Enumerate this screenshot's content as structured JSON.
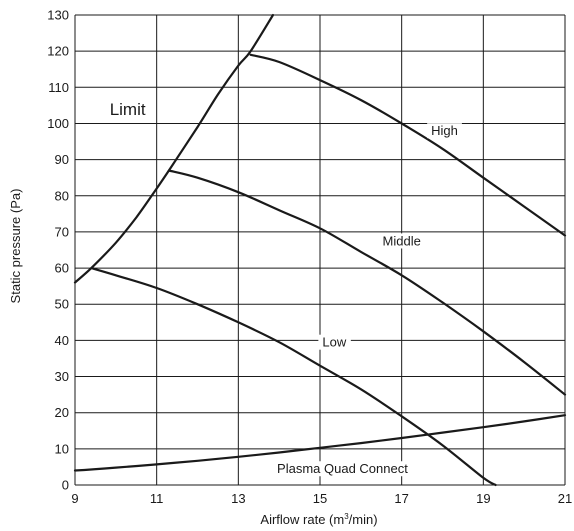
{
  "chart_data": {
    "type": "line",
    "xlabel_main": "Airflow rate (m",
    "xlabel_sup": "3",
    "xlabel_tail": "/min)",
    "ylabel": "Static pressure (Pa)",
    "xlim": [
      9,
      21
    ],
    "ylim": [
      0,
      130
    ],
    "x_ticks": [
      9,
      11,
      13,
      15,
      17,
      19,
      21
    ],
    "y_ticks": [
      0,
      10,
      20,
      30,
      40,
      50,
      60,
      70,
      80,
      90,
      100,
      110,
      120,
      130
    ],
    "grid": true,
    "series": [
      {
        "name": "Limit",
        "x": [
          9.0,
          9.4,
          10.0,
          10.5,
          11.0,
          11.3,
          12.0,
          12.5,
          13.0,
          13.3,
          13.85
        ],
        "y": [
          56,
          60,
          67,
          74,
          82,
          87,
          99,
          108,
          116,
          120,
          130
        ]
      },
      {
        "name": "High",
        "x": [
          13.3,
          14.0,
          15.0,
          16.0,
          17.0,
          18.0,
          19.0,
          20.0,
          21.0
        ],
        "y": [
          119,
          117,
          112,
          106.5,
          100,
          93,
          85,
          77,
          69
        ]
      },
      {
        "name": "Middle",
        "x": [
          11.3,
          12.0,
          13.0,
          14.0,
          15.0,
          16.0,
          17.0,
          18.0,
          19.0,
          20.0,
          21.0
        ],
        "y": [
          87,
          85,
          81,
          76,
          71,
          64.5,
          58,
          50.5,
          42.5,
          34,
          25
        ]
      },
      {
        "name": "Low",
        "x": [
          9.4,
          10.0,
          11.0,
          12.0,
          13.0,
          14.0,
          15.0,
          16.0,
          17.0,
          18.0,
          19.0,
          19.3
        ],
        "y": [
          60,
          58,
          54.5,
          50,
          45,
          39.5,
          33,
          26.5,
          19,
          11,
          2,
          0
        ]
      },
      {
        "name": "Plasma Quad Connect",
        "x": [
          9.0,
          10.0,
          11.0,
          12.0,
          13.0,
          14.0,
          15.0,
          16.0,
          17.0,
          18.0,
          19.0,
          20.0,
          21.0
        ],
        "y": [
          4,
          4.8,
          5.7,
          6.7,
          7.8,
          9.0,
          10.3,
          11.6,
          13.0,
          14.5,
          16.0,
          17.6,
          19.3
        ]
      }
    ],
    "labels": {
      "limit": "Limit",
      "high": "High",
      "middle": "Middle",
      "low": "Low",
      "plasma": "Plasma Quad Connect"
    }
  }
}
